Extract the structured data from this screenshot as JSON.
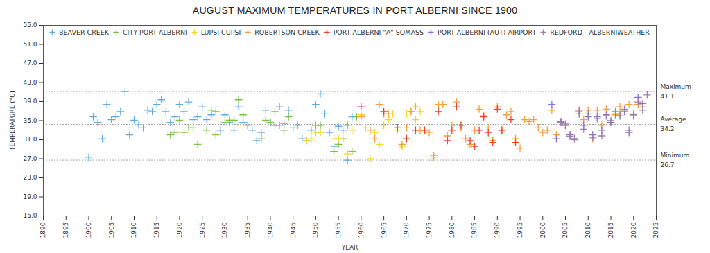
{
  "chart_data": {
    "type": "scatter",
    "title": "AUGUST MAXIMUM TEMPERATURES IN PORT ALBERNI SINCE 1900",
    "x_label": "YEAR",
    "y_label": "TEMPERATURE (°C)",
    "xlim": [
      1890,
      2025
    ],
    "xticks": [
      1890,
      1895,
      1900,
      1905,
      1910,
      1915,
      1920,
      1925,
      1930,
      1935,
      1940,
      1945,
      1950,
      1955,
      1960,
      1965,
      1970,
      1975,
      1980,
      1985,
      1990,
      1995,
      2000,
      2005,
      2010,
      2015,
      2020,
      2025
    ],
    "ylim": [
      15,
      55
    ],
    "yticks": [
      {
        "value": 15,
        "label": "15.0"
      },
      {
        "value": 19,
        "label": "19.0"
      },
      {
        "value": 23,
        "label": "23.0"
      },
      {
        "value": 27,
        "label": "27.0"
      },
      {
        "value": 31,
        "label": "31.0"
      },
      {
        "value": 35,
        "label": "35.0"
      },
      {
        "value": 39,
        "label": "39.0"
      },
      {
        "value": 43,
        "label": "43.0"
      },
      {
        "value": 47,
        "label": "47.0"
      },
      {
        "value": 51,
        "label": "51.0"
      },
      {
        "value": 55,
        "label": "55.0"
      }
    ],
    "grid": false,
    "legend": "top",
    "marker": "plus",
    "reference_lines": [
      {
        "label": "Maximum",
        "value": 41.1
      },
      {
        "label": "Average",
        "value": 34.2
      },
      {
        "label": "Minimum",
        "value": 26.7
      }
    ],
    "series": [
      {
        "name": "BEAVER CREEK",
        "color": "#5dade2",
        "x": [
          1900,
          1901,
          1902,
          1903,
          1904,
          1905,
          1906,
          1907,
          1908,
          1909,
          1910,
          1911,
          1912,
          1913,
          1914,
          1915,
          1916,
          1917,
          1918,
          1919,
          1920,
          1921,
          1922,
          1923,
          1924,
          1925,
          1926,
          1927,
          1928,
          1929,
          1930,
          1931,
          1932,
          1933,
          1934,
          1935,
          1936,
          1937,
          1938,
          1939,
          1940,
          1941,
          1942,
          1943,
          1944,
          1945,
          1946,
          1947,
          1948,
          1949,
          1950,
          1951,
          1952,
          1953,
          1954,
          1955,
          1956,
          1957,
          1958
        ],
        "values": [
          27.3,
          35.8,
          34.6,
          31.2,
          38.4,
          35.2,
          35.8,
          36.9,
          41.1,
          32.0,
          35.1,
          34.1,
          33.5,
          37.2,
          36.9,
          38.4,
          39.4,
          36.9,
          34.6,
          35.8,
          38.4,
          36.9,
          38.9,
          35.2,
          35.8,
          37.9,
          35.2,
          36.2,
          36.9,
          33.0,
          36.2,
          34.6,
          33.0,
          37.9,
          34.6,
          34.0,
          33.0,
          30.8,
          32.5,
          37.2,
          34.6,
          34.0,
          37.9,
          34.4,
          37.2,
          33.5,
          34.0,
          31.2,
          30.8,
          33.0,
          38.4,
          40.6,
          36.4,
          32.5,
          29.6,
          33.8,
          33.0,
          26.7,
          35.8
        ]
      },
      {
        "name": "CITY PORT ALBERNI",
        "color": "#7ac142",
        "x": [
          1918,
          1919,
          1920,
          1921,
          1922,
          1923,
          1924,
          1926,
          1927,
          1928,
          1930,
          1931,
          1932,
          1933,
          1934,
          1938,
          1939,
          1940,
          1941,
          1942,
          1943,
          1944,
          1950,
          1951,
          1954,
          1955,
          1956,
          1957,
          1958,
          1959
        ],
        "values": [
          32.0,
          32.5,
          35.1,
          32.5,
          33.5,
          33.5,
          30.0,
          33.0,
          37.2,
          32.0,
          34.6,
          35.1,
          35.1,
          39.4,
          36.2,
          31.2,
          35.1,
          34.6,
          36.9,
          34.0,
          33.0,
          35.8,
          34.0,
          34.0,
          28.5,
          30.0,
          31.2,
          34.0,
          28.5,
          35.8
        ]
      },
      {
        "name": "LUPSI CUPSI",
        "color": "#f5d327",
        "x": [
          1948,
          1949,
          1950,
          1951,
          1954,
          1955,
          1957,
          1958,
          1960,
          1961,
          1962,
          1963,
          1964,
          1965,
          1966,
          1967,
          1968,
          1969,
          1970,
          1971,
          1972,
          1973,
          1976,
          1977
        ],
        "values": [
          30.8,
          31.2,
          32.5,
          32.5,
          31.2,
          31.2,
          28.0,
          33.0,
          36.2,
          33.5,
          27.0,
          32.5,
          30.0,
          34.0,
          35.2,
          36.4,
          33.0,
          29.6,
          36.4,
          36.9,
          35.2,
          36.9,
          27.3,
          38.4
        ]
      },
      {
        "name": "ROBERTSON CREEK",
        "color": "#f5a03c",
        "x": [
          1960,
          1962,
          1963,
          1964,
          1965,
          1966,
          1968,
          1969,
          1970,
          1971,
          1972,
          1973,
          1975,
          1976,
          1977,
          1978,
          1979,
          1980,
          1981,
          1982,
          1983,
          1984,
          1985,
          1986,
          1987,
          1988,
          1989,
          1990,
          1991,
          1992,
          1993,
          1994,
          1995,
          1996,
          1997,
          1998,
          1999,
          2000,
          2001,
          2002,
          2003,
          2004,
          2005,
          2006,
          2007,
          2008,
          2009,
          2010,
          2011,
          2012,
          2013,
          2014,
          2015,
          2016,
          2017,
          2018,
          2019,
          2020,
          2021,
          2022
        ],
        "values": [
          35.8,
          33.0,
          31.2,
          38.4,
          36.4,
          36.4,
          33.5,
          30.0,
          33.5,
          36.9,
          37.9,
          33.0,
          32.5,
          27.7,
          38.4,
          38.4,
          31.8,
          34.0,
          38.9,
          33.5,
          31.2,
          30.0,
          33.0,
          37.4,
          36.0,
          33.5,
          30.8,
          37.9,
          33.0,
          36.2,
          36.9,
          31.2,
          29.2,
          35.2,
          34.8,
          35.2,
          33.5,
          32.5,
          33.0,
          37.2,
          32.0,
          34.6,
          34.0,
          32.0,
          31.2,
          36.9,
          35.2,
          37.2,
          31.2,
          37.2,
          34.0,
          37.4,
          34.6,
          36.2,
          37.9,
          37.2,
          38.4,
          36.4,
          38.4,
          37.9
        ]
      },
      {
        "name": "PORT ALBERNI \"A\" SOMASS",
        "color": "#e8412c",
        "x": [
          1960,
          1965,
          1968,
          1970,
          1972,
          1974,
          1977,
          1979,
          1980,
          1981,
          1982,
          1984,
          1985,
          1986,
          1987,
          1988,
          1989,
          1990,
          1991,
          1993,
          1994
        ],
        "values": [
          37.9,
          36.9,
          33.5,
          31.2,
          33.0,
          33.0,
          36.9,
          30.8,
          33.0,
          37.9,
          34.0,
          30.8,
          29.6,
          33.0,
          35.8,
          32.5,
          30.4,
          37.4,
          33.0,
          35.2,
          30.4
        ]
      },
      {
        "name": "PORT ALBERNI (AUT) AIRPORT",
        "color": "#8a6fd0",
        "x": [
          2002,
          2003,
          2004,
          2005,
          2006,
          2007,
          2008,
          2009,
          2010,
          2011,
          2012,
          2013,
          2014,
          2015,
          2016,
          2017,
          2018,
          2019,
          2020,
          2021,
          2022
        ],
        "values": [
          38.4,
          31.2,
          34.6,
          34.0,
          32.0,
          31.2,
          36.4,
          34.0,
          35.8,
          32.0,
          35.8,
          33.0,
          36.2,
          34.6,
          36.4,
          36.0,
          36.9,
          32.5,
          36.0,
          39.9,
          38.6
        ]
      },
      {
        "name": "REDFORD - ALBERNIWEATHER",
        "color": "#9b7fb0",
        "x": [
          2004,
          2005,
          2006,
          2007,
          2008,
          2009,
          2010,
          2011,
          2012,
          2013,
          2014,
          2015,
          2016,
          2017,
          2018,
          2019,
          2020,
          2021,
          2022,
          2023
        ],
        "values": [
          34.8,
          34.3,
          31.7,
          31.0,
          37.2,
          33.2,
          36.4,
          31.5,
          35.4,
          31.8,
          36.0,
          35.0,
          36.9,
          36.4,
          37.4,
          33.0,
          36.2,
          38.9,
          37.2,
          40.4
        ]
      }
    ]
  }
}
